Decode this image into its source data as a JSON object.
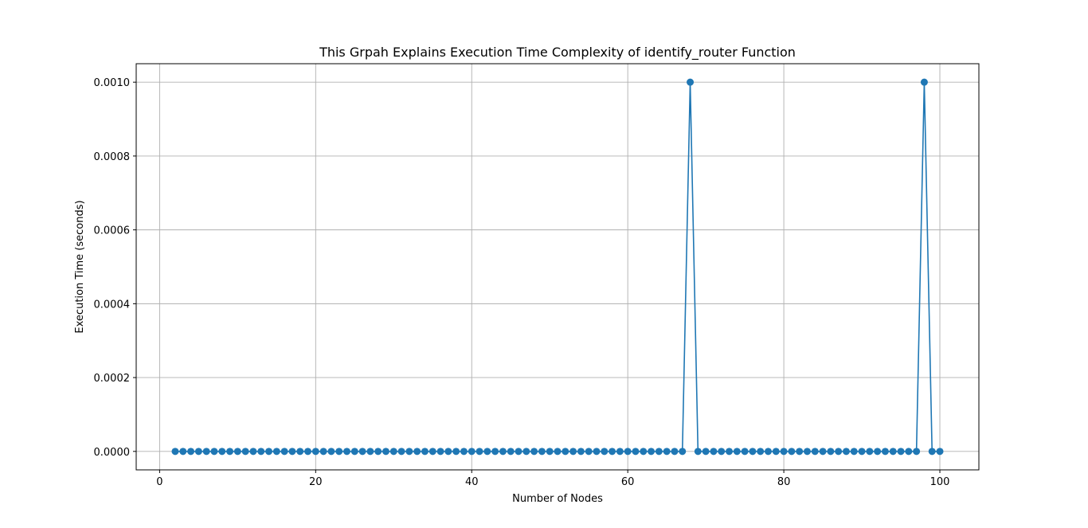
{
  "chart_data": {
    "type": "line",
    "title": "This Grpah Explains Execution Time Complexity of identify_router Function",
    "xlabel": "Number of Nodes",
    "ylabel": "Execution Time (seconds)",
    "xlim": [
      -3,
      105
    ],
    "ylim": [
      -5e-05,
      0.00105
    ],
    "grid": true,
    "line_color": "#1f77b4",
    "marker": "circle",
    "x_ticks": [
      0,
      20,
      40,
      60,
      80,
      100
    ],
    "x_tick_labels": [
      "0",
      "20",
      "40",
      "60",
      "80",
      "100"
    ],
    "y_ticks": [
      0,
      0.0002,
      0.0004,
      0.0006,
      0.0008,
      0.001
    ],
    "y_tick_labels": [
      "0.0000",
      "0.0002",
      "0.0004",
      "0.0006",
      "0.0008",
      "0.0010"
    ],
    "series": [
      {
        "x": [
          2,
          3,
          4,
          5,
          6,
          7,
          8,
          9,
          10,
          11,
          12,
          13,
          14,
          15,
          16,
          17,
          18,
          19,
          20,
          21,
          22,
          23,
          24,
          25,
          26,
          27,
          28,
          29,
          30,
          31,
          32,
          33,
          34,
          35,
          36,
          37,
          38,
          39,
          40,
          41,
          42,
          43,
          44,
          45,
          46,
          47,
          48,
          49,
          50,
          51,
          52,
          53,
          54,
          55,
          56,
          57,
          58,
          59,
          60,
          61,
          62,
          63,
          64,
          65,
          66,
          67,
          68,
          69,
          70,
          71,
          72,
          73,
          74,
          75,
          76,
          77,
          78,
          79,
          80,
          81,
          82,
          83,
          84,
          85,
          86,
          87,
          88,
          89,
          90,
          91,
          92,
          93,
          94,
          95,
          96,
          97,
          98,
          99,
          100
        ],
        "y": [
          0,
          0,
          0,
          0,
          0,
          0,
          0,
          0,
          0,
          0,
          0,
          0,
          0,
          0,
          0,
          0,
          0,
          0,
          0,
          0,
          0,
          0,
          0,
          0,
          0,
          0,
          0,
          0,
          0,
          0,
          0,
          0,
          0,
          0,
          0,
          0,
          0,
          0,
          0,
          0,
          0,
          0,
          0,
          0,
          0,
          0,
          0,
          0,
          0,
          0,
          0,
          0,
          0,
          0,
          0,
          0,
          0,
          0,
          0,
          0,
          0,
          0,
          0,
          0,
          0,
          0,
          0.001,
          0,
          0,
          0,
          0,
          0,
          0,
          0,
          0,
          0,
          0,
          0,
          0,
          0,
          0,
          0,
          0,
          0,
          0,
          0,
          0,
          0,
          0,
          0,
          0,
          0,
          0,
          0,
          0,
          0,
          0.001,
          0,
          0
        ]
      }
    ]
  }
}
